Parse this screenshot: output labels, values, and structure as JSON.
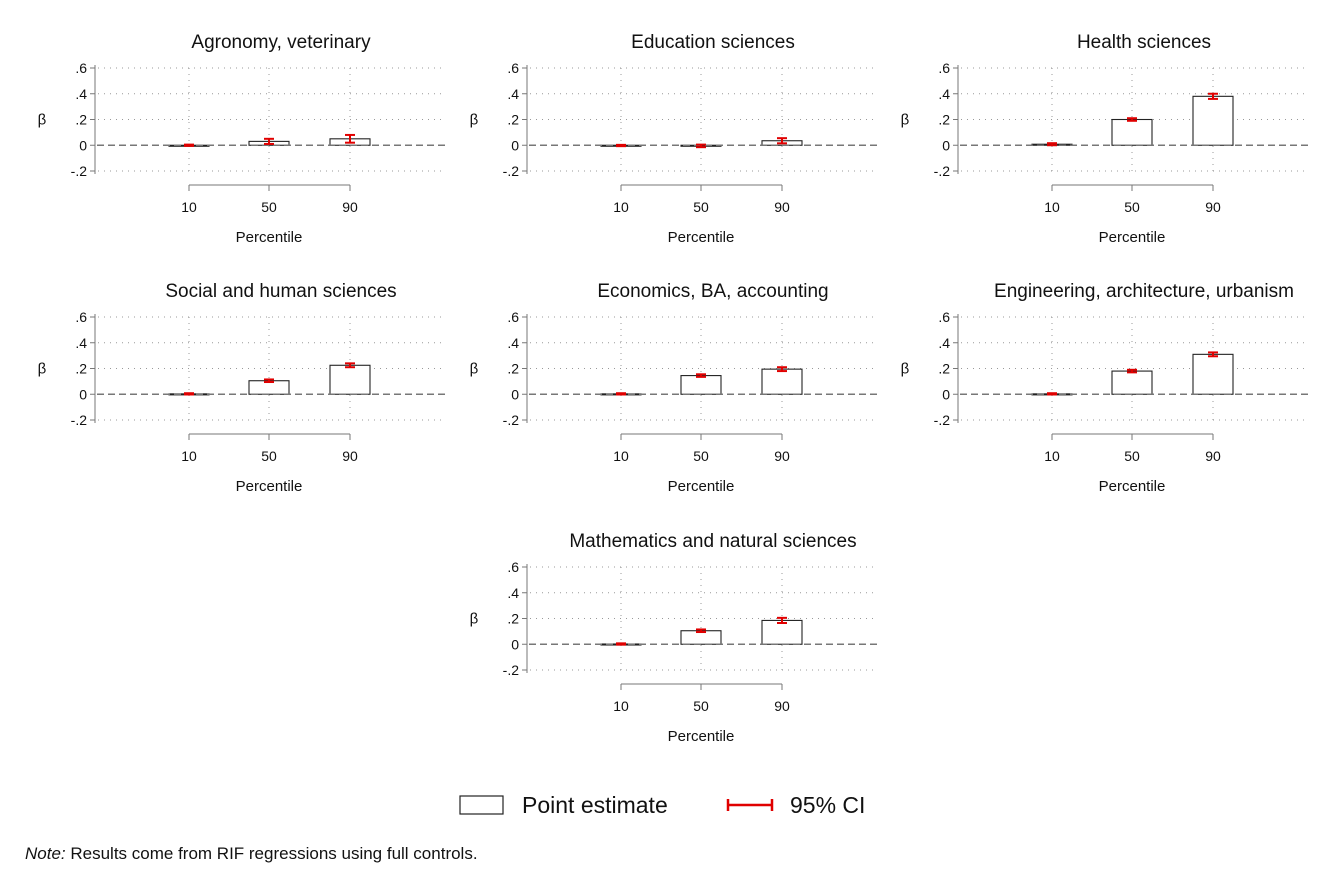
{
  "figure": {
    "legend": {
      "point_label": "Point estimate",
      "ci_label": "95% CI",
      "point_fill": "#ffffff",
      "point_stroke": "#222222",
      "ci_color": "#e00000"
    },
    "note": {
      "prefix": "Note:",
      "text": " Results come from RIF regressions using full controls."
    }
  },
  "chart_data": [
    {
      "type": "bar",
      "title": "Agronomy, veterinary",
      "xlabel": "Percentile",
      "ylabel": "β",
      "categories": [
        "10",
        "50",
        "90"
      ],
      "values": [
        0.0,
        0.03,
        0.05
      ],
      "ci_low": [
        -0.005,
        0.01,
        0.02
      ],
      "ci_high": [
        0.005,
        0.05,
        0.08
      ],
      "ylim": [
        -0.2,
        0.6
      ],
      "yticks": [
        -0.2,
        0,
        0.2,
        0.4,
        0.6
      ],
      "ytick_labels": [
        "-.2",
        "0",
        ".2",
        ".4",
        ".6"
      ],
      "grid": true
    },
    {
      "type": "bar",
      "title": "Education sciences",
      "xlabel": "Percentile",
      "ylabel": "β",
      "categories": [
        "10",
        "50",
        "90"
      ],
      "values": [
        -0.002,
        -0.005,
        0.035
      ],
      "ci_low": [
        -0.007,
        -0.015,
        0.015
      ],
      "ci_high": [
        0.003,
        0.005,
        0.055
      ],
      "ylim": [
        -0.2,
        0.6
      ],
      "yticks": [
        -0.2,
        0,
        0.2,
        0.4,
        0.6
      ],
      "ytick_labels": [
        "-.2",
        "0",
        ".2",
        ".4",
        ".6"
      ],
      "grid": true
    },
    {
      "type": "bar",
      "title": "Health sciences",
      "xlabel": "Percentile",
      "ylabel": "β",
      "categories": [
        "10",
        "50",
        "90"
      ],
      "values": [
        0.008,
        0.2,
        0.38
      ],
      "ci_low": [
        0.0,
        0.19,
        0.36
      ],
      "ci_high": [
        0.016,
        0.21,
        0.4
      ],
      "ylim": [
        -0.2,
        0.6
      ],
      "yticks": [
        -0.2,
        0,
        0.2,
        0.4,
        0.6
      ],
      "ytick_labels": [
        "-.2",
        "0",
        ".2",
        ".4",
        ".6"
      ],
      "grid": true
    },
    {
      "type": "bar",
      "title": "Social and human sciences",
      "xlabel": "Percentile",
      "ylabel": "β",
      "categories": [
        "10",
        "50",
        "90"
      ],
      "values": [
        0.003,
        0.105,
        0.225
      ],
      "ci_low": [
        -0.002,
        0.095,
        0.21
      ],
      "ci_high": [
        0.008,
        0.115,
        0.24
      ],
      "ylim": [
        -0.2,
        0.6
      ],
      "yticks": [
        -0.2,
        0,
        0.2,
        0.4,
        0.6
      ],
      "ytick_labels": [
        "-.2",
        "0",
        ".2",
        ".4",
        ".6"
      ],
      "grid": true
    },
    {
      "type": "bar",
      "title": "Economics, BA, accounting",
      "xlabel": "Percentile",
      "ylabel": "β",
      "categories": [
        "10",
        "50",
        "90"
      ],
      "values": [
        0.003,
        0.145,
        0.195
      ],
      "ci_low": [
        -0.002,
        0.135,
        0.18
      ],
      "ci_high": [
        0.008,
        0.155,
        0.21
      ],
      "ylim": [
        -0.2,
        0.6
      ],
      "yticks": [
        -0.2,
        0,
        0.2,
        0.4,
        0.6
      ],
      "ytick_labels": [
        "-.2",
        "0",
        ".2",
        ".4",
        ".6"
      ],
      "grid": true
    },
    {
      "type": "bar",
      "title": "Engineering, architecture, urbanism",
      "xlabel": "Percentile",
      "ylabel": "β",
      "categories": [
        "10",
        "50",
        "90"
      ],
      "values": [
        0.003,
        0.18,
        0.31
      ],
      "ci_low": [
        -0.002,
        0.17,
        0.295
      ],
      "ci_high": [
        0.008,
        0.19,
        0.325
      ],
      "ylim": [
        -0.2,
        0.6
      ],
      "yticks": [
        -0.2,
        0,
        0.2,
        0.4,
        0.6
      ],
      "ytick_labels": [
        "-.2",
        "0",
        ".2",
        ".4",
        ".6"
      ],
      "grid": true
    },
    {
      "type": "bar",
      "title": "Mathematics and natural sciences",
      "xlabel": "Percentile",
      "ylabel": "β",
      "categories": [
        "10",
        "50",
        "90"
      ],
      "values": [
        0.002,
        0.105,
        0.185
      ],
      "ci_low": [
        -0.003,
        0.095,
        0.165
      ],
      "ci_high": [
        0.007,
        0.115,
        0.205
      ],
      "ylim": [
        -0.2,
        0.6
      ],
      "yticks": [
        -0.2,
        0,
        0.2,
        0.4,
        0.6
      ],
      "ytick_labels": [
        "-.2",
        "0",
        ".2",
        ".4",
        ".6"
      ],
      "grid": true
    }
  ]
}
